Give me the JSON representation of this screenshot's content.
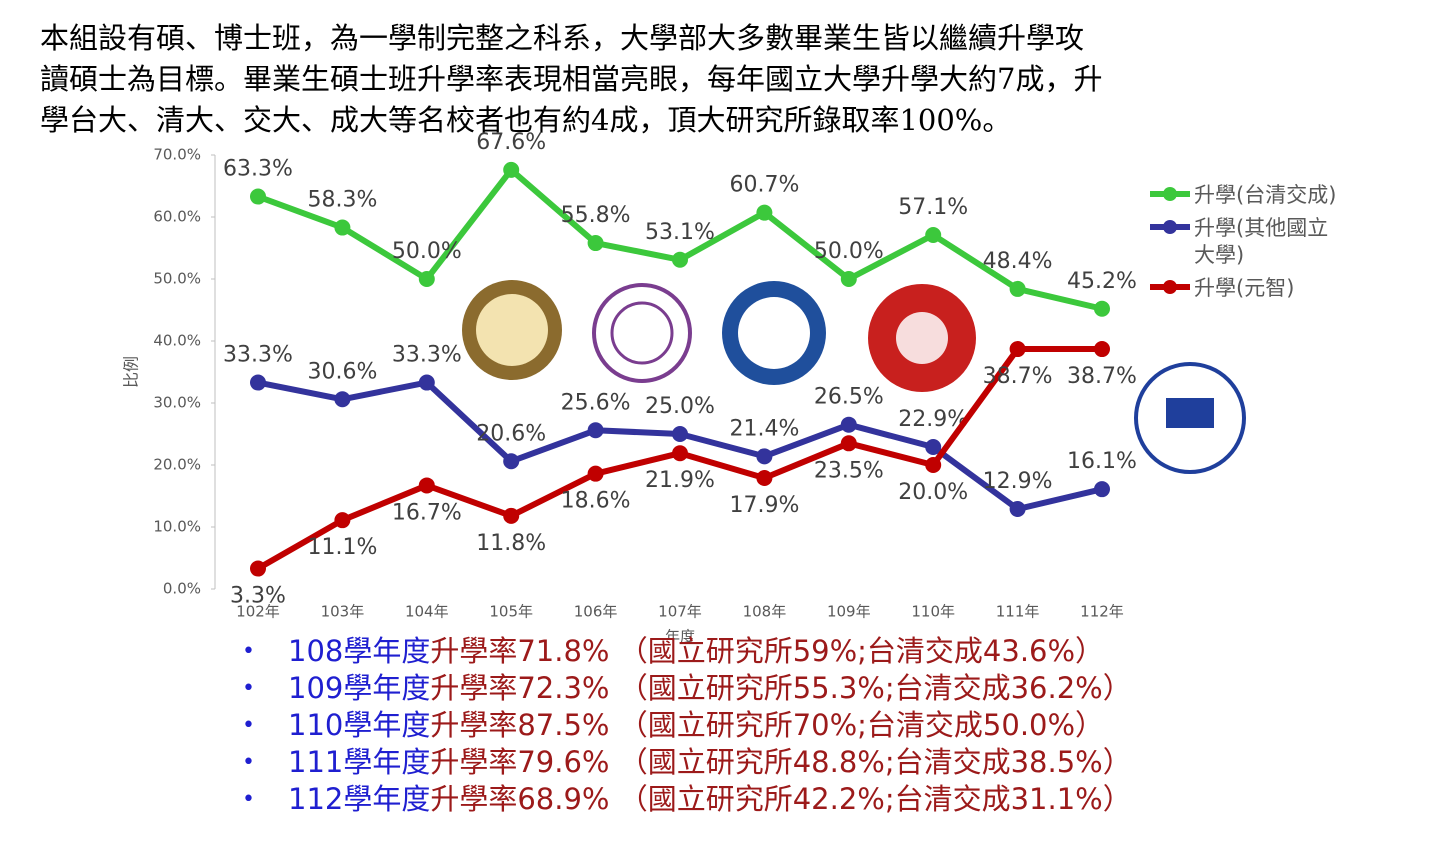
{
  "paragraph": [
    "本組設有碩、博士班，為一學制完整之科系，大學部大多數畢業生皆以繼續升學攻",
    "讀碩士為目標。畢業生碩士班升學率表現相當亮眼，每年國立大學升學大約7成，升",
    "學台大、清大、交大、成大等名校者也有約4成，頂大研究所錄取率100%。"
  ],
  "chart_data": {
    "type": "line",
    "y_label": "比例",
    "x_label": "年度",
    "categories": [
      "102年",
      "103年",
      "104年",
      "105年",
      "106年",
      "107年",
      "108年",
      "109年",
      "110年",
      "111年",
      "112年"
    ],
    "ylim": [
      0,
      70
    ],
    "yticks": [
      {
        "value": 0,
        "label": "0.0%"
      },
      {
        "value": 10,
        "label": "10.0%"
      },
      {
        "value": 20,
        "label": "20.0%"
      },
      {
        "value": 30,
        "label": "30.0%"
      },
      {
        "value": 40,
        "label": "40.0%"
      },
      {
        "value": 50,
        "label": "50.0%"
      },
      {
        "value": 60,
        "label": "60.0%"
      },
      {
        "value": 70,
        "label": "70.0%"
      }
    ],
    "legend": "right",
    "series": [
      {
        "name": "升學(台清交成)",
        "color": "#3cc83c",
        "values": [
          63.3,
          58.3,
          50.0,
          67.6,
          55.8,
          53.1,
          60.7,
          50.0,
          57.1,
          48.4,
          45.2
        ],
        "value_labels": [
          "63.3%",
          "58.3%",
          "50.0%",
          "67.6%",
          "55.8%",
          "53.1%",
          "60.7%",
          "50.0%",
          "57.1%",
          "48.4%",
          "45.2%"
        ]
      },
      {
        "name": "升學(其他國立大學)",
        "color": "#33339c",
        "values": [
          33.3,
          30.6,
          33.3,
          20.6,
          25.6,
          25.0,
          21.4,
          26.5,
          22.9,
          12.9,
          16.1
        ],
        "value_labels": [
          "33.3%",
          "30.6%",
          "33.3%",
          "20.6%",
          "25.6%",
          "25.0%",
          "21.4%",
          "26.5%",
          "22.9%",
          "12.9%",
          "16.1%"
        ]
      },
      {
        "name": "升學(元智)",
        "color": "#c00000",
        "values": [
          3.3,
          11.1,
          16.7,
          11.8,
          18.6,
          21.9,
          17.9,
          23.5,
          20.0,
          38.7,
          38.7
        ],
        "value_labels": [
          "3.3%",
          "11.1%",
          "16.7%",
          "11.8%",
          "18.6%",
          "21.9%",
          "17.9%",
          "23.5%",
          "20.0%",
          "38.7%",
          "38.7%"
        ]
      }
    ]
  },
  "bullets": [
    {
      "year": "108學年度",
      "text": "升學率71.8% （國立研究所59%;台清交成43.6%）"
    },
    {
      "year": "109學年度",
      "text": "升學率72.3% （國立研究所55.3%;台清交成36.2%）"
    },
    {
      "year": "110學年度",
      "text": "升學率87.5% （國立研究所70%;台清交成50.0%）"
    },
    {
      "year": "111學年度",
      "text": "升學率79.6% （國立研究所48.8%;台清交成38.5%）"
    },
    {
      "year": "112學年度",
      "text": "升學率68.9% （國立研究所42.2%;台清交成31.1%）"
    }
  ]
}
